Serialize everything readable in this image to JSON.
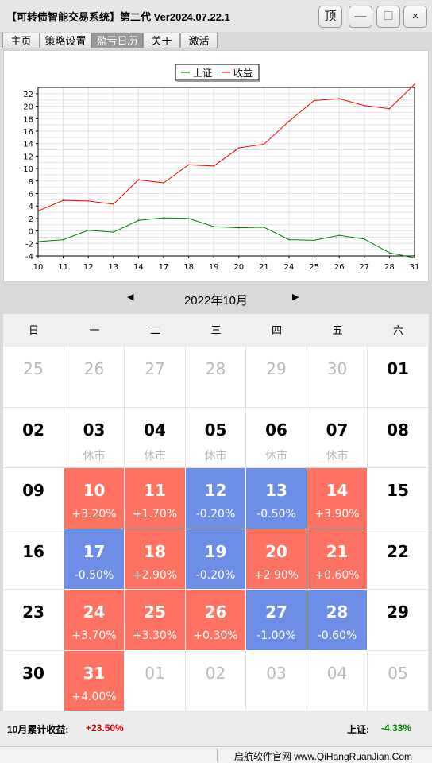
{
  "app": {
    "title": "【可转债智能交易系统】第二代 Ver2024.07.22.1"
  },
  "window_buttons": [
    {
      "label": "顶",
      "icon": "pin-top-icon"
    },
    {
      "label": "—",
      "icon": "minimize-icon"
    },
    {
      "label": "☐",
      "icon": "maximize-icon"
    },
    {
      "label": "×",
      "icon": "close-icon"
    }
  ],
  "tabs": [
    {
      "label": "主页",
      "active": false
    },
    {
      "label": "策略设置",
      "active": false
    },
    {
      "label": "盈亏日历",
      "active": true
    },
    {
      "label": "关于",
      "active": false
    },
    {
      "label": "激活",
      "active": false
    }
  ],
  "chart_data": {
    "type": "line",
    "x": [
      10,
      11,
      12,
      13,
      14,
      17,
      18,
      19,
      20,
      21,
      24,
      25,
      26,
      27,
      28,
      31
    ],
    "series": [
      {
        "name": "上证",
        "color": "#008000",
        "values": [
          -1.7,
          -1.4,
          0.1,
          -0.2,
          1.7,
          2.1,
          2.0,
          0.7,
          0.5,
          0.6,
          -1.4,
          -1.5,
          -0.7,
          -1.3,
          -3.5,
          -4.3
        ]
      },
      {
        "name": "收益",
        "color": "#ff0000",
        "values": [
          3.2,
          4.9,
          4.8,
          4.3,
          8.2,
          7.7,
          10.6,
          10.4,
          13.3,
          13.9,
          17.6,
          20.9,
          21.2,
          20.1,
          19.6,
          23.5
        ]
      }
    ],
    "ylim": [
      -4,
      23
    ],
    "yticks": [
      -4,
      -2,
      0,
      2,
      4,
      6,
      8,
      10,
      12,
      14,
      16,
      18,
      20,
      22
    ],
    "grid": true,
    "legend": "top-center"
  },
  "calendar": {
    "month_label": "2022年10月",
    "prev_icon": "◀",
    "next_icon": "▶",
    "weekdays": [
      "日",
      "一",
      "二",
      "三",
      "四",
      "五",
      "六"
    ],
    "colors": {
      "up": "#fd7261",
      "down": "#6d8ee6",
      "dim": "#bbbbbb",
      "text": "#000000"
    },
    "rows": [
      [
        {
          "day": "25",
          "type": "dim"
        },
        {
          "day": "26",
          "type": "dim"
        },
        {
          "day": "27",
          "type": "dim"
        },
        {
          "day": "28",
          "type": "dim"
        },
        {
          "day": "29",
          "type": "dim"
        },
        {
          "day": "30",
          "type": "dim"
        },
        {
          "day": "01",
          "type": "normal"
        }
      ],
      [
        {
          "day": "02",
          "type": "normal"
        },
        {
          "day": "03",
          "type": "closed",
          "sub": "休市"
        },
        {
          "day": "04",
          "type": "closed",
          "sub": "休市"
        },
        {
          "day": "05",
          "type": "closed",
          "sub": "休市"
        },
        {
          "day": "06",
          "type": "closed",
          "sub": "休市"
        },
        {
          "day": "07",
          "type": "closed",
          "sub": "休市"
        },
        {
          "day": "08",
          "type": "normal"
        }
      ],
      [
        {
          "day": "09",
          "type": "normal"
        },
        {
          "day": "10",
          "type": "up",
          "sub": "+3.20%"
        },
        {
          "day": "11",
          "type": "up",
          "sub": "+1.70%"
        },
        {
          "day": "12",
          "type": "down",
          "sub": "-0.20%"
        },
        {
          "day": "13",
          "type": "down",
          "sub": "-0.50%"
        },
        {
          "day": "14",
          "type": "up",
          "sub": "+3.90%"
        },
        {
          "day": "15",
          "type": "normal"
        }
      ],
      [
        {
          "day": "16",
          "type": "normal"
        },
        {
          "day": "17",
          "type": "down",
          "sub": "-0.50%"
        },
        {
          "day": "18",
          "type": "up",
          "sub": "+2.90%"
        },
        {
          "day": "19",
          "type": "down",
          "sub": "-0.20%"
        },
        {
          "day": "20",
          "type": "up",
          "sub": "+2.90%"
        },
        {
          "day": "21",
          "type": "up",
          "sub": "+0.60%"
        },
        {
          "day": "22",
          "type": "normal"
        }
      ],
      [
        {
          "day": "23",
          "type": "normal"
        },
        {
          "day": "24",
          "type": "up",
          "sub": "+3.70%"
        },
        {
          "day": "25",
          "type": "up",
          "sub": "+3.30%"
        },
        {
          "day": "26",
          "type": "up",
          "sub": "+0.30%"
        },
        {
          "day": "27",
          "type": "down",
          "sub": "-1.00%"
        },
        {
          "day": "28",
          "type": "down",
          "sub": "-0.60%"
        },
        {
          "day": "29",
          "type": "normal"
        }
      ],
      [
        {
          "day": "30",
          "type": "normal"
        },
        {
          "day": "31",
          "type": "up",
          "sub": "+4.00%"
        },
        {
          "day": "01",
          "type": "dim"
        },
        {
          "day": "02",
          "type": "dim"
        },
        {
          "day": "03",
          "type": "dim"
        },
        {
          "day": "04",
          "type": "dim"
        },
        {
          "day": "05",
          "type": "dim"
        }
      ]
    ]
  },
  "footer": {
    "monthly_label": "10月累计收益:",
    "monthly_value": "+23.50%",
    "monthly_color": "#e00000",
    "index_label": "上证:",
    "index_value": "-4.33%",
    "index_color": "#008000"
  },
  "bottom_bar": {
    "text": "启航软件官网   www.QiHangRuanJian.Com"
  }
}
